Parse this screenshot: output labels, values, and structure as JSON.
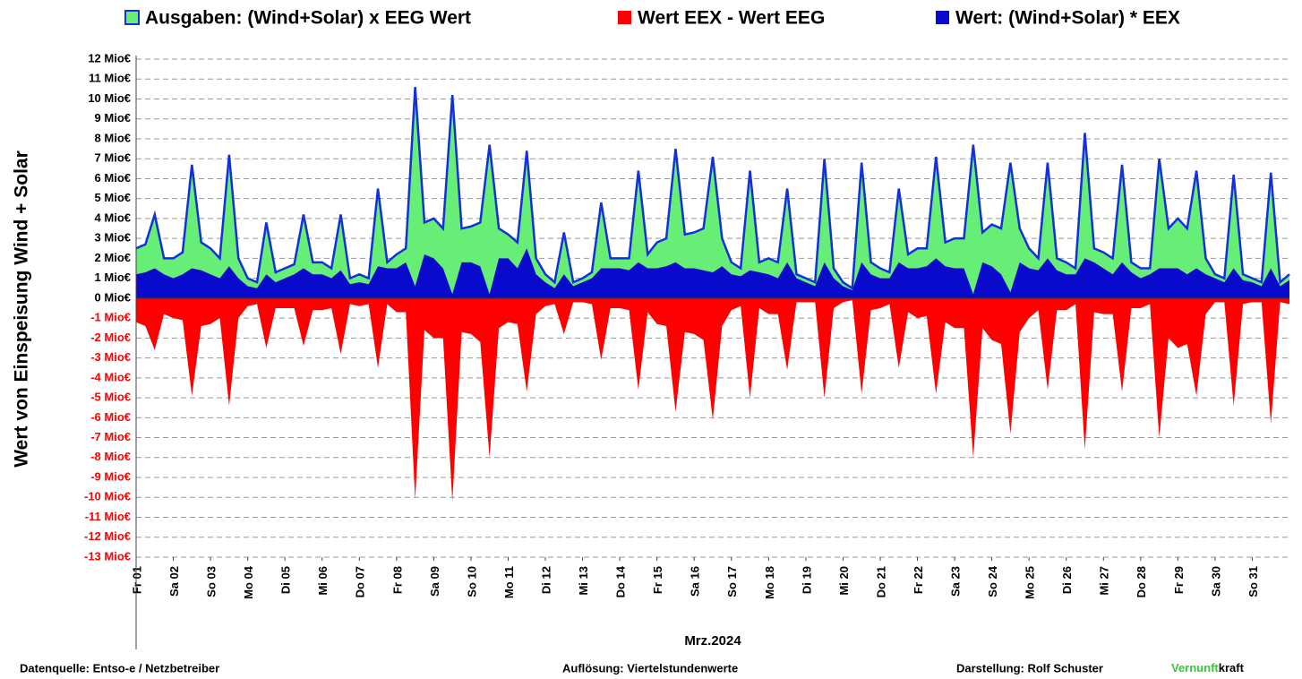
{
  "chart_data": {
    "type": "area",
    "ylabel": "Wert von Einspeisung Wind + Solar",
    "xlabel": "Mrz.2024",
    "grid": true,
    "legend": "top",
    "edgecolor": "#1430d8",
    "xlim": [
      1,
      32
    ],
    "ylim": [
      -13,
      12
    ],
    "yticks": [
      {
        "value": 12,
        "label": "12 Mio€"
      },
      {
        "value": 11,
        "label": "11 Mio€"
      },
      {
        "value": 10,
        "label": "10 Mio€"
      },
      {
        "value": 9,
        "label": "9 Mio€"
      },
      {
        "value": 8,
        "label": "8 Mio€"
      },
      {
        "value": 7,
        "label": "7 Mio€"
      },
      {
        "value": 6,
        "label": "6 Mio€"
      },
      {
        "value": 5,
        "label": "5 Mio€"
      },
      {
        "value": 4,
        "label": "4 Mio€"
      },
      {
        "value": 3,
        "label": "3 Mio€"
      },
      {
        "value": 2,
        "label": "2 Mio€"
      },
      {
        "value": 1,
        "label": "1 Mio€"
      },
      {
        "value": 0,
        "label": "0 Mio€"
      },
      {
        "value": -1,
        "label": "-1 Mio€"
      },
      {
        "value": -2,
        "label": "-2 Mio€"
      },
      {
        "value": -3,
        "label": "-3 Mio€"
      },
      {
        "value": -4,
        "label": "-4 Mio€"
      },
      {
        "value": -5,
        "label": "-5 Mio€"
      },
      {
        "value": -6,
        "label": "-6 Mio€"
      },
      {
        "value": -7,
        "label": "-7 Mio€"
      },
      {
        "value": -8,
        "label": "-8 Mio€"
      },
      {
        "value": -9,
        "label": "-9 Mio€"
      },
      {
        "value": -10,
        "label": "-10 Mio€"
      },
      {
        "value": -11,
        "label": "-11 Mio€"
      },
      {
        "value": -12,
        "label": "-12 Mio€"
      },
      {
        "value": -13,
        "label": "-13 Mio€"
      }
    ],
    "xticks": [
      {
        "value": 1,
        "label": "Fr 01"
      },
      {
        "value": 2,
        "label": "Sa 02"
      },
      {
        "value": 3,
        "label": "So 03"
      },
      {
        "value": 4,
        "label": "Mo 04"
      },
      {
        "value": 5,
        "label": "Di 05"
      },
      {
        "value": 6,
        "label": "Mi 06"
      },
      {
        "value": 7,
        "label": "Do 07"
      },
      {
        "value": 8,
        "label": "Fr 08"
      },
      {
        "value": 9,
        "label": "Sa 09"
      },
      {
        "value": 10,
        "label": "So 10"
      },
      {
        "value": 11,
        "label": "Mo 11"
      },
      {
        "value": 12,
        "label": "Di 12"
      },
      {
        "value": 13,
        "label": "Mi 13"
      },
      {
        "value": 14,
        "label": "Do 14"
      },
      {
        "value": 15,
        "label": "Fr 15"
      },
      {
        "value": 16,
        "label": "Sa 16"
      },
      {
        "value": 17,
        "label": "So 17"
      },
      {
        "value": 18,
        "label": "Mo 18"
      },
      {
        "value": 19,
        "label": "Di 19"
      },
      {
        "value": 20,
        "label": "Mi 20"
      },
      {
        "value": 21,
        "label": "Do 21"
      },
      {
        "value": 22,
        "label": "Fr 22"
      },
      {
        "value": 23,
        "label": "Sa 23"
      },
      {
        "value": 24,
        "label": "So 24"
      },
      {
        "value": 25,
        "label": "Mo 25"
      },
      {
        "value": 26,
        "label": "Di 26"
      },
      {
        "value": 27,
        "label": "Mi 27"
      },
      {
        "value": 28,
        "label": "Do 28"
      },
      {
        "value": 29,
        "label": "Fr 29"
      },
      {
        "value": 30,
        "label": "Sa 30"
      },
      {
        "value": 31,
        "label": "So 31"
      }
    ],
    "x": [
      1,
      1.25,
      1.5,
      1.75,
      2,
      2.25,
      2.5,
      2.75,
      3,
      3.25,
      3.5,
      3.75,
      4,
      4.25,
      4.5,
      4.75,
      5,
      5.25,
      5.5,
      5.75,
      6,
      6.25,
      6.5,
      6.75,
      7,
      7.25,
      7.5,
      7.75,
      8,
      8.25,
      8.5,
      8.75,
      9,
      9.25,
      9.5,
      9.75,
      10,
      10.25,
      10.5,
      10.75,
      11,
      11.25,
      11.5,
      11.75,
      12,
      12.25,
      12.5,
      12.75,
      13,
      13.25,
      13.5,
      13.75,
      14,
      14.25,
      14.5,
      14.75,
      15,
      15.25,
      15.5,
      15.75,
      16,
      16.25,
      16.5,
      16.75,
      17,
      17.25,
      17.5,
      17.75,
      18,
      18.25,
      18.5,
      18.75,
      19,
      19.25,
      19.5,
      19.75,
      20,
      20.25,
      20.5,
      20.75,
      21,
      21.25,
      21.5,
      21.75,
      22,
      22.25,
      22.5,
      22.75,
      23,
      23.25,
      23.5,
      23.75,
      24,
      24.25,
      24.5,
      24.75,
      25,
      25.25,
      25.5,
      25.75,
      26,
      26.25,
      26.5,
      26.75,
      27,
      27.25,
      27.5,
      27.75,
      28,
      28.25,
      28.5,
      28.75,
      29,
      29.25,
      29.5,
      29.75,
      30,
      30.25,
      30.5,
      30.75,
      31,
      31.25,
      31.5,
      31.75,
      32
    ],
    "series": [
      {
        "name": "Ausgaben: (Wind+Solar) x EEG Wert",
        "color": "#66ee77",
        "values": [
          2.5,
          2.7,
          4.2,
          2.0,
          2.0,
          2.3,
          6.7,
          2.8,
          2.5,
          2.0,
          7.2,
          2.0,
          1.0,
          0.8,
          3.8,
          1.3,
          1.5,
          1.7,
          4.2,
          1.8,
          1.8,
          1.5,
          4.2,
          1.0,
          1.2,
          1.0,
          5.5,
          1.8,
          2.2,
          2.5,
          10.6,
          3.8,
          4.0,
          3.5,
          10.2,
          3.5,
          3.6,
          3.8,
          7.7,
          3.5,
          3.2,
          2.8,
          7.4,
          2.0,
          1.2,
          0.8,
          3.3,
          0.8,
          1.0,
          1.3,
          4.8,
          2.0,
          2.0,
          2.0,
          6.4,
          2.2,
          2.8,
          3.0,
          7.5,
          3.2,
          3.3,
          3.5,
          7.1,
          3.0,
          1.8,
          1.5,
          6.4,
          1.8,
          2.0,
          1.8,
          5.5,
          1.2,
          1.0,
          0.8,
          7.0,
          1.5,
          0.8,
          0.5,
          6.8,
          1.8,
          1.5,
          1.3,
          5.5,
          2.2,
          2.5,
          2.5,
          7.1,
          2.8,
          3.0,
          3.0,
          7.7,
          3.3,
          3.7,
          3.5,
          6.8,
          3.5,
          2.5,
          2.0,
          6.8,
          2.0,
          1.8,
          1.5,
          8.3,
          2.5,
          2.3,
          2.0,
          6.7,
          1.8,
          1.5,
          1.5,
          7.0,
          3.5,
          4.0,
          3.5,
          6.4,
          2.0,
          1.2,
          1.0,
          6.2,
          1.2,
          1.0,
          0.8,
          6.3,
          0.8,
          1.2
        ]
      },
      {
        "name": "Wert EEX - Wert EEG",
        "color": "#ff0000",
        "values": [
          -1.2,
          -1.4,
          -2.6,
          -0.8,
          -1.0,
          -1.1,
          -4.9,
          -1.4,
          -1.3,
          -1.0,
          -5.4,
          -1.0,
          -0.4,
          -0.3,
          -2.5,
          -0.5,
          -0.5,
          -0.5,
          -2.4,
          -0.6,
          -0.6,
          -0.5,
          -2.8,
          -0.3,
          -0.4,
          -0.3,
          -3.5,
          -0.3,
          -0.7,
          -0.7,
          -10.1,
          -1.6,
          -2.0,
          -2.0,
          -10.2,
          -1.7,
          -1.8,
          -2.2,
          -8.0,
          -1.5,
          -1.2,
          -1.3,
          -4.7,
          -0.8,
          -0.4,
          -0.3,
          -1.8,
          -0.2,
          -0.2,
          -0.3,
          -3.1,
          -0.5,
          -0.5,
          -0.6,
          -4.6,
          -0.7,
          -1.3,
          -1.4,
          -5.7,
          -1.7,
          -1.8,
          -2.1,
          -6.1,
          -1.4,
          -0.6,
          -0.4,
          -5.0,
          -0.5,
          -0.8,
          -0.8,
          -3.6,
          -0.2,
          -0.2,
          -0.2,
          -5.0,
          -0.5,
          -0.2,
          -0.1,
          -4.8,
          -0.6,
          -0.5,
          -0.3,
          -3.5,
          -0.7,
          -1.0,
          -0.9,
          -4.8,
          -1.2,
          -1.5,
          -1.5,
          -8.0,
          -1.5,
          -2.1,
          -2.3,
          -6.8,
          -1.7,
          -1.0,
          -0.6,
          -4.6,
          -0.6,
          -0.6,
          -0.3,
          -7.6,
          -0.7,
          -0.8,
          -0.8,
          -4.7,
          -0.5,
          -0.5,
          -0.3,
          -7.0,
          -2.0,
          -2.5,
          -2.3,
          -4.9,
          -0.8,
          -0.2,
          -0.2,
          -5.4,
          -0.3,
          -0.2,
          -0.2,
          -6.3,
          -0.2,
          -0.3
        ]
      },
      {
        "name": "Wert: (Wind+Solar) * EEX",
        "color": "#0a0acc",
        "values": [
          1.2,
          1.3,
          1.5,
          1.2,
          1.0,
          1.2,
          1.5,
          1.4,
          1.2,
          1.0,
          1.6,
          1.0,
          0.6,
          0.5,
          1.2,
          0.8,
          1.0,
          1.2,
          1.5,
          1.2,
          1.2,
          1.0,
          1.4,
          0.7,
          0.8,
          0.7,
          1.6,
          1.5,
          1.5,
          1.8,
          0.6,
          2.2,
          2.0,
          1.5,
          0.2,
          1.8,
          1.8,
          1.6,
          0.2,
          2.0,
          2.0,
          1.5,
          2.5,
          1.2,
          0.8,
          0.5,
          1.2,
          0.6,
          0.8,
          1.0,
          1.5,
          1.5,
          1.5,
          1.4,
          1.8,
          1.5,
          1.5,
          1.6,
          1.8,
          1.5,
          1.5,
          1.4,
          1.3,
          1.6,
          1.2,
          1.1,
          1.4,
          1.3,
          1.2,
          1.0,
          1.8,
          1.0,
          0.8,
          0.6,
          1.8,
          1.0,
          0.6,
          0.4,
          1.8,
          1.2,
          1.0,
          1.0,
          1.8,
          1.5,
          1.5,
          1.6,
          2.0,
          1.6,
          1.5,
          1.5,
          0.2,
          1.8,
          1.6,
          1.2,
          0.3,
          1.8,
          1.5,
          1.4,
          2.0,
          1.4,
          1.2,
          1.2,
          2.0,
          1.8,
          1.5,
          1.2,
          1.8,
          1.3,
          1.0,
          1.2,
          1.5,
          1.5,
          1.5,
          1.2,
          1.5,
          1.2,
          1.0,
          0.8,
          1.5,
          0.9,
          0.8,
          0.6,
          1.5,
          0.6,
          0.9
        ]
      }
    ]
  },
  "footer": {
    "source": "Datenquelle:  Entso-e  / Netzbetreiber",
    "resolution": "Auflösung: Viertelstundenwerte",
    "author": "Darstellung:  Rolf Schuster",
    "brand_green": "Vernunft",
    "brand_black": "kraft"
  }
}
